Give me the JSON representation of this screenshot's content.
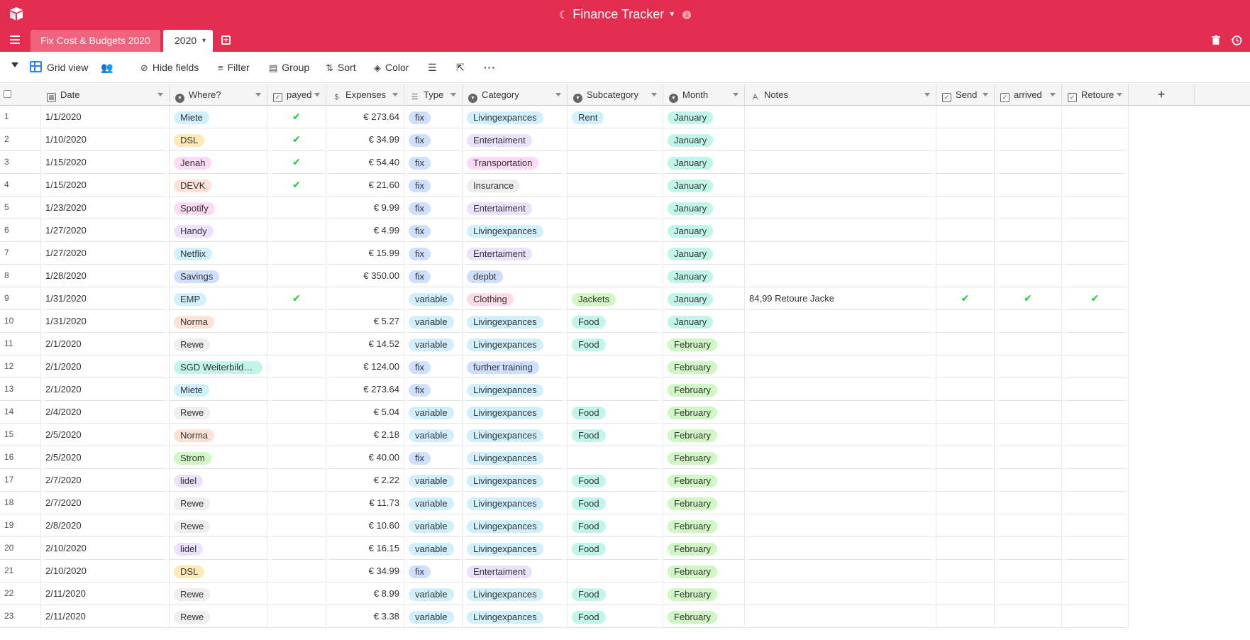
{
  "app": {
    "title": "Finance Tracker",
    "accent": "#e32d4e"
  },
  "tabs": [
    {
      "label": "Fix Cost & Budgets 2020",
      "active": false
    },
    {
      "label": "2020",
      "active": true
    }
  ],
  "toolbar": {
    "view_name": "Grid view",
    "hide_fields": "Hide fields",
    "filter": "Filter",
    "group": "Group",
    "sort": "Sort",
    "color": "Color"
  },
  "columns": [
    {
      "key": "date",
      "label": "Date",
      "icon": "calendar-icon"
    },
    {
      "key": "where",
      "label": "Where?",
      "icon": "single-select-icon"
    },
    {
      "key": "payed",
      "label": "payed",
      "icon": "checkbox-icon"
    },
    {
      "key": "expenses",
      "label": "Expenses",
      "icon": "currency-icon"
    },
    {
      "key": "type",
      "label": "Type",
      "icon": "multi-select-icon"
    },
    {
      "key": "category",
      "label": "Category",
      "icon": "single-select-icon"
    },
    {
      "key": "subcategory",
      "label": "Subcategory",
      "icon": "single-select-icon"
    },
    {
      "key": "month",
      "label": "Month",
      "icon": "single-select-icon"
    },
    {
      "key": "notes",
      "label": "Notes",
      "icon": "text-icon"
    },
    {
      "key": "send",
      "label": "Send",
      "icon": "checkbox-icon"
    },
    {
      "key": "arrived",
      "label": "arrived",
      "icon": "checkbox-icon"
    },
    {
      "key": "retoure",
      "label": "Retoure",
      "icon": "checkbox-icon"
    }
  ],
  "pill_colors": {
    "Miete": "#d0f0fd",
    "DSL": "#ffeab6",
    "Jenah": "#ffdaf6",
    "DEVK": "#fee2d5",
    "Spotify": "#ffdaf6",
    "Handy": "#ede2fe",
    "Netflix": "#d0f0fd",
    "Savings": "#cfdfff",
    "EMP": "#d0f0fd",
    "Norma": "#fee2d5",
    "Rewe": "#eeeeee",
    "SGD Weiterbildu...": "#c2f5e9",
    "Strom": "#d1f7c4",
    "lidel": "#ede2fe",
    "fix": "#cfdfff",
    "variable": "#d0f0fd",
    "Livingexpances": "#d0f0fd",
    "Entertaiment": "#ede2fe",
    "Transportation": "#ffdaf6",
    "Insurance": "#eeeeee",
    "depbt": "#cfdfff",
    "Clothing": "#ffdce5",
    "further training": "#cfdfff",
    "Rent": "#d0f0fd",
    "Jackets": "#d1f7c4",
    "Food": "#c2f5e9",
    "January": "#c2f5e9",
    "February": "#d1f7c4"
  },
  "rows": [
    {
      "n": "1",
      "date": "1/1/2020",
      "where": "Miete",
      "payed": true,
      "expenses": "€ 273.64",
      "type": "fix",
      "category": "Livingexpances",
      "subcategory": "Rent",
      "month": "January",
      "notes": "",
      "send": false,
      "arrived": false,
      "retoure": false
    },
    {
      "n": "2",
      "date": "1/10/2020",
      "where": "DSL",
      "payed": true,
      "expenses": "€ 34.99",
      "type": "fix",
      "category": "Entertaiment",
      "subcategory": "",
      "month": "January",
      "notes": "",
      "send": false,
      "arrived": false,
      "retoure": false
    },
    {
      "n": "3",
      "date": "1/15/2020",
      "where": "Jenah",
      "payed": true,
      "expenses": "€ 54.40",
      "type": "fix",
      "category": "Transportation",
      "subcategory": "",
      "month": "January",
      "notes": "",
      "send": false,
      "arrived": false,
      "retoure": false
    },
    {
      "n": "4",
      "date": "1/15/2020",
      "where": "DEVK",
      "payed": true,
      "expenses": "€ 21.60",
      "type": "fix",
      "category": "Insurance",
      "subcategory": "",
      "month": "January",
      "notes": "",
      "send": false,
      "arrived": false,
      "retoure": false
    },
    {
      "n": "5",
      "date": "1/23/2020",
      "where": "Spotify",
      "payed": false,
      "expenses": "€ 9.99",
      "type": "fix",
      "category": "Entertaiment",
      "subcategory": "",
      "month": "January",
      "notes": "",
      "send": false,
      "arrived": false,
      "retoure": false
    },
    {
      "n": "6",
      "date": "1/27/2020",
      "where": "Handy",
      "payed": false,
      "expenses": "€ 4.99",
      "type": "fix",
      "category": "Livingexpances",
      "subcategory": "",
      "month": "January",
      "notes": "",
      "send": false,
      "arrived": false,
      "retoure": false
    },
    {
      "n": "7",
      "date": "1/27/2020",
      "where": "Netflix",
      "payed": false,
      "expenses": "€ 15.99",
      "type": "fix",
      "category": "Entertaiment",
      "subcategory": "",
      "month": "January",
      "notes": "",
      "send": false,
      "arrived": false,
      "retoure": false
    },
    {
      "n": "8",
      "date": "1/28/2020",
      "where": "Savings",
      "payed": false,
      "expenses": "€ 350.00",
      "type": "fix",
      "category": "depbt",
      "subcategory": "",
      "month": "January",
      "notes": "",
      "send": false,
      "arrived": false,
      "retoure": false
    },
    {
      "n": "9",
      "date": "1/31/2020",
      "where": "EMP",
      "payed": true,
      "expenses": "",
      "type": "variable",
      "category": "Clothing",
      "subcategory": "Jackets",
      "month": "January",
      "notes": "84,99 Retoure Jacke",
      "send": true,
      "arrived": true,
      "retoure": true
    },
    {
      "n": "10",
      "date": "1/31/2020",
      "where": "Norma",
      "payed": false,
      "expenses": "€ 5.27",
      "type": "variable",
      "category": "Livingexpances",
      "subcategory": "Food",
      "month": "January",
      "notes": "",
      "send": false,
      "arrived": false,
      "retoure": false
    },
    {
      "n": "11",
      "date": "2/1/2020",
      "where": "Rewe",
      "payed": false,
      "expenses": "€ 14.52",
      "type": "variable",
      "category": "Livingexpances",
      "subcategory": "Food",
      "month": "February",
      "notes": "",
      "send": false,
      "arrived": false,
      "retoure": false
    },
    {
      "n": "12",
      "date": "2/1/2020",
      "where": "SGD Weiterbildu...",
      "payed": false,
      "expenses": "€ 124.00",
      "type": "fix",
      "category": "further training",
      "subcategory": "",
      "month": "February",
      "notes": "",
      "send": false,
      "arrived": false,
      "retoure": false
    },
    {
      "n": "13",
      "date": "2/1/2020",
      "where": "Miete",
      "payed": false,
      "expenses": "€ 273.64",
      "type": "fix",
      "category": "Livingexpances",
      "subcategory": "",
      "month": "February",
      "notes": "",
      "send": false,
      "arrived": false,
      "retoure": false
    },
    {
      "n": "14",
      "date": "2/4/2020",
      "where": "Rewe",
      "payed": false,
      "expenses": "€ 5.04",
      "type": "variable",
      "category": "Livingexpances",
      "subcategory": "Food",
      "month": "February",
      "notes": "",
      "send": false,
      "arrived": false,
      "retoure": false
    },
    {
      "n": "15",
      "date": "2/5/2020",
      "where": "Norma",
      "payed": false,
      "expenses": "€ 2.18",
      "type": "variable",
      "category": "Livingexpances",
      "subcategory": "Food",
      "month": "February",
      "notes": "",
      "send": false,
      "arrived": false,
      "retoure": false
    },
    {
      "n": "16",
      "date": "2/5/2020",
      "where": "Strom",
      "payed": false,
      "expenses": "€ 40.00",
      "type": "fix",
      "category": "Livingexpances",
      "subcategory": "",
      "month": "February",
      "notes": "",
      "send": false,
      "arrived": false,
      "retoure": false
    },
    {
      "n": "17",
      "date": "2/7/2020",
      "where": "lidel",
      "payed": false,
      "expenses": "€ 2.22",
      "type": "variable",
      "category": "Livingexpances",
      "subcategory": "Food",
      "month": "February",
      "notes": "",
      "send": false,
      "arrived": false,
      "retoure": false
    },
    {
      "n": "18",
      "date": "2/7/2020",
      "where": "Rewe",
      "payed": false,
      "expenses": "€ 11.73",
      "type": "variable",
      "category": "Livingexpances",
      "subcategory": "Food",
      "month": "February",
      "notes": "",
      "send": false,
      "arrived": false,
      "retoure": false
    },
    {
      "n": "19",
      "date": "2/8/2020",
      "where": "Rewe",
      "payed": false,
      "expenses": "€ 10.60",
      "type": "variable",
      "category": "Livingexpances",
      "subcategory": "Food",
      "month": "February",
      "notes": "",
      "send": false,
      "arrived": false,
      "retoure": false
    },
    {
      "n": "20",
      "date": "2/10/2020",
      "where": "lidel",
      "payed": false,
      "expenses": "€ 16.15",
      "type": "variable",
      "category": "Livingexpances",
      "subcategory": "Food",
      "month": "February",
      "notes": "",
      "send": false,
      "arrived": false,
      "retoure": false
    },
    {
      "n": "21",
      "date": "2/10/2020",
      "where": "DSL",
      "payed": false,
      "expenses": "€ 34.99",
      "type": "fix",
      "category": "Entertaiment",
      "subcategory": "",
      "month": "February",
      "notes": "",
      "send": false,
      "arrived": false,
      "retoure": false
    },
    {
      "n": "22",
      "date": "2/11/2020",
      "where": "Rewe",
      "payed": false,
      "expenses": "€ 8.99",
      "type": "variable",
      "category": "Livingexpances",
      "subcategory": "Food",
      "month": "February",
      "notes": "",
      "send": false,
      "arrived": false,
      "retoure": false
    },
    {
      "n": "23",
      "date": "2/11/2020",
      "where": "Rewe",
      "payed": false,
      "expenses": "€ 3.38",
      "type": "variable",
      "category": "Livingexpances",
      "subcategory": "Food",
      "month": "February",
      "notes": "",
      "send": false,
      "arrived": false,
      "retoure": false
    }
  ]
}
